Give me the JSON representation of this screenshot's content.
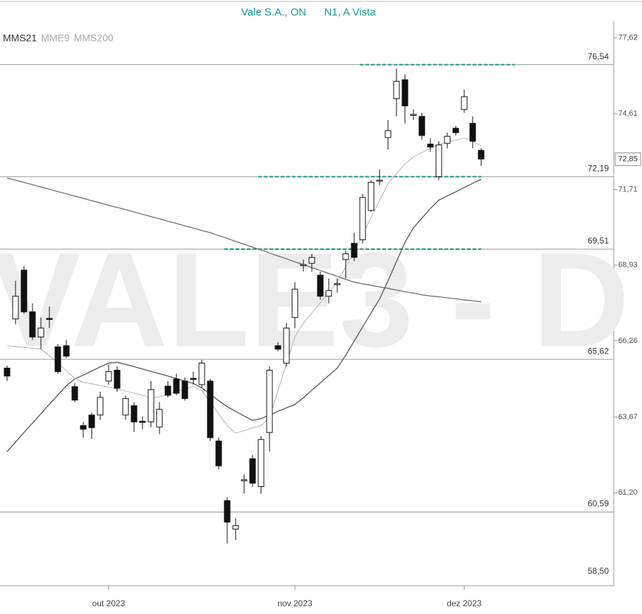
{
  "chart_data": {
    "type": "candlestick",
    "title": "Vale S.A., ON",
    "subtitle": "N1, A Vista",
    "watermark": "VALE3 - D",
    "log_scale": true,
    "ylim": [
      58.3,
      78.3
    ],
    "yticks": [
      {
        "value": 77.62,
        "label": "77,62"
      },
      {
        "value": 74.61,
        "label": "74,61"
      },
      {
        "value": 71.71,
        "label": "71,71"
      },
      {
        "value": 68.93,
        "label": "68,93"
      },
      {
        "value": 66.26,
        "label": "66,26"
      },
      {
        "value": 63.67,
        "label": "63,67"
      },
      {
        "value": 61.2,
        "label": "61,20"
      }
    ],
    "last_price": {
      "value": 72.85,
      "label": "72,85"
    },
    "levels": [
      {
        "value": 76.54,
        "label": "76,54"
      },
      {
        "value": 72.19,
        "label": "72,19"
      },
      {
        "value": 69.51,
        "label": "69,51"
      },
      {
        "value": 65.62,
        "label": "65,62"
      },
      {
        "value": 60.59,
        "label": "60,59"
      },
      {
        "value": 58.5,
        "label": "58,50"
      }
    ],
    "categories": [
      null,
      null,
      null,
      null,
      null,
      null,
      null,
      null,
      null,
      null,
      null,
      null,
      "out 2023",
      null,
      null,
      null,
      null,
      null,
      null,
      null,
      null,
      null,
      null,
      null,
      null,
      null,
      null,
      null,
      null,
      null,
      null,
      null,
      null,
      null,
      "nov 2023",
      null,
      null,
      null,
      null,
      null,
      null,
      null,
      null,
      null,
      null,
      null,
      null,
      null,
      null,
      null,
      null,
      null,
      null,
      null,
      "dez 2023",
      null,
      null
    ],
    "open": [
      65.32,
      67.02,
      68.75,
      67.27,
      66.39,
      67.04,
      66.05,
      66.09,
      64.69,
      63.39,
      63.74,
      63.74,
      64.88,
      65.25,
      63.74,
      64.05,
      63.53,
      63.51,
      63.34,
      64.71,
      64.95,
      64.88,
      64.97,
      64.76,
      64.88,
      62.88,
      60.95,
      60.05,
      61.6,
      62.3,
      61.4,
      63.16,
      66.09,
      65.49,
      67.07,
      68.93,
      69.0,
      68.57,
      67.82,
      68.25,
      69.13,
      69.72,
      69.85,
      70.93,
      72.04,
      73.68,
      75.19,
      75.94,
      74.56,
      74.5,
      73.43,
      72.19,
      73.46,
      74.04,
      74.77,
      74.23,
      73.19
    ],
    "high": [
      65.41,
      68.37,
      68.9,
      67.57,
      67.07,
      67.45,
      66.14,
      66.29,
      64.81,
      63.51,
      63.81,
      64.52,
      65.44,
      65.37,
      64.4,
      64.17,
      63.7,
      64.88,
      64.17,
      64.88,
      65.13,
      65.0,
      65.2,
      65.61,
      64.95,
      62.99,
      61.06,
      60.39,
      61.8,
      62.42,
      63.04,
      65.37,
      66.21,
      66.88,
      68.32,
      69.13,
      69.34,
      68.7,
      68.45,
      68.45,
      69.46,
      70.11,
      71.54,
      72.06,
      72.46,
      74.36,
      76.38,
      76.16,
      74.77,
      74.64,
      73.65,
      73.54,
      73.87,
      74.14,
      75.55,
      74.5,
      73.27
    ],
    "low": [
      64.88,
      66.83,
      67.2,
      66.29,
      65.97,
      66.7,
      65.13,
      65.66,
      64.17,
      62.99,
      62.95,
      63.58,
      64.76,
      64.52,
      63.58,
      63.18,
      63.27,
      63.34,
      63.11,
      64.33,
      64.4,
      64.22,
      64.76,
      64.64,
      62.88,
      61.96,
      59.6,
      59.71,
      61.17,
      61.4,
      61.17,
      62.53,
      65.9,
      65.37,
      66.7,
      68.7,
      68.7,
      67.7,
      67.57,
      67.95,
      68.45,
      69.08,
      69.72,
      70.88,
      71.87,
      73.22,
      74.5,
      74.23,
      74.36,
      73.6,
      73.13,
      72.06,
      73.27,
      73.76,
      74.64,
      73.27,
      72.6
    ],
    "close": [
      65.05,
      67.82,
      67.27,
      66.39,
      66.7,
      67.02,
      65.2,
      65.73,
      64.24,
      63.27,
      63.32,
      64.33,
      65.2,
      64.64,
      64.29,
      63.51,
      63.51,
      64.59,
      63.93,
      64.4,
      64.47,
      64.29,
      64.95,
      65.49,
      62.99,
      62.07,
      60.27,
      60.16,
      61.62,
      61.51,
      62.93,
      65.25,
      65.97,
      66.7,
      68.07,
      68.95,
      69.21,
      67.82,
      68.02,
      68.27,
      69.34,
      69.21,
      71.41,
      71.98,
      72.06,
      73.95,
      75.88,
      74.91,
      74.58,
      73.76,
      73.32,
      73.4,
      73.73,
      73.87,
      75.27,
      73.54,
      72.86
    ],
    "series": [
      {
        "name": "MMS21",
        "color": "#555555",
        "values": [
          62.53,
          62.84,
          63.16,
          63.47,
          63.78,
          64.1,
          64.41,
          64.72,
          64.95,
          65.08,
          65.22,
          65.36,
          65.49,
          65.52,
          65.45,
          65.37,
          65.29,
          65.21,
          65.13,
          65.05,
          64.97,
          64.88,
          64.8,
          64.65,
          64.44,
          64.22,
          64.02,
          63.86,
          63.71,
          63.56,
          63.62,
          63.74,
          63.86,
          63.98,
          64.09,
          64.32,
          64.57,
          64.82,
          65.07,
          65.32,
          65.76,
          66.25,
          66.74,
          67.23,
          67.72,
          68.37,
          69.06,
          69.76,
          70.29,
          70.64,
          71.0,
          71.31,
          71.47,
          71.62,
          71.78,
          71.94,
          72.09
        ]
      },
      {
        "name": "MME9",
        "color": "#b4b4b4",
        "values": [
          66.09,
          66.06,
          66.03,
          66.0,
          65.97,
          65.75,
          65.49,
          65.23,
          64.97,
          64.84,
          64.79,
          64.73,
          64.67,
          64.61,
          64.54,
          64.47,
          64.4,
          64.33,
          64.34,
          64.43,
          64.53,
          64.62,
          64.71,
          64.56,
          64.17,
          63.78,
          63.39,
          63.14,
          63.22,
          63.31,
          63.39,
          63.64,
          64.56,
          65.48,
          66.4,
          66.87,
          67.23,
          67.59,
          67.96,
          68.33,
          68.86,
          69.38,
          70.04,
          70.67,
          71.3,
          71.93,
          72.3,
          72.67,
          72.94,
          73.11,
          73.27,
          73.42,
          73.5,
          73.58,
          73.66,
          73.54,
          73.36
        ]
      },
      {
        "name": "MMS200",
        "color": "#6e6e6e",
        "values": [
          72.14,
          72.06,
          71.97,
          71.89,
          71.8,
          71.72,
          71.63,
          71.55,
          71.46,
          71.38,
          71.29,
          71.21,
          71.12,
          71.04,
          70.96,
          70.87,
          70.79,
          70.7,
          70.62,
          70.53,
          70.45,
          70.36,
          70.28,
          70.19,
          70.11,
          70.0,
          69.9,
          69.79,
          69.69,
          69.58,
          69.48,
          69.37,
          69.26,
          69.16,
          69.05,
          68.95,
          68.84,
          68.74,
          68.63,
          68.53,
          68.42,
          68.32,
          68.26,
          68.21,
          68.15,
          68.1,
          68.04,
          67.98,
          67.93,
          67.87,
          67.83,
          67.8,
          67.76,
          67.73,
          67.69,
          67.66,
          67.62
        ]
      }
    ]
  }
}
